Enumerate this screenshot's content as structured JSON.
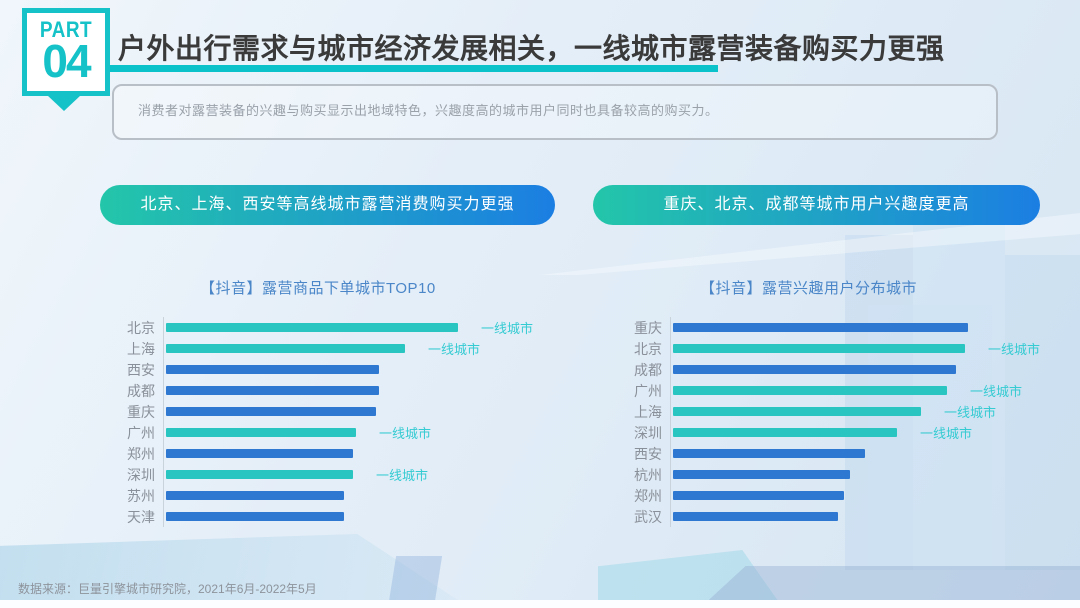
{
  "header": {
    "part_label": "PART",
    "part_number": "04",
    "title": "户外出行需求与城市经济发展相关，一线城市露营装备购买力更强",
    "subtitle": "消费者对露营装备的兴趣与购买显示出地域特色，兴趣度高的城市用户同时也具备较高的购买力。"
  },
  "pills": {
    "left": "北京、上海、西安等高线城市露营消费购买力更强",
    "right": "重庆、北京、成都等城市用户兴趣度更高"
  },
  "colors": {
    "accent_teal": "#14c2c8",
    "bar_tier1_teal": "#29c5c0",
    "bar_other_blue": "#2e78d2",
    "annotation_teal": "#35cbd2",
    "chart_title_blue": "#4a86c8",
    "pill_gradient_start": "#23c6a9",
    "pill_gradient_end": "#1b7ee2"
  },
  "chart_data": [
    {
      "type": "bar",
      "orientation": "horizontal",
      "title": "【抖音】露营商品下单城市TOP10",
      "categories": [
        "北京",
        "上海",
        "西安",
        "成都",
        "重庆",
        "广州",
        "郑州",
        "深圳",
        "苏州",
        "天津"
      ],
      "values": [
        100,
        82,
        73,
        73,
        72,
        65,
        64,
        64,
        61,
        61
      ],
      "value_note": "relative bar length, top city = 100 (no numeric axis shown)",
      "xlim": [
        0,
        100
      ],
      "grid": false,
      "tier1_annotation": "一线城市",
      "tier1_cities": [
        "北京",
        "上海",
        "广州",
        "深圳"
      ]
    },
    {
      "type": "bar",
      "orientation": "horizontal",
      "title": "【抖音】露营兴趣用户分布城市",
      "categories": [
        "重庆",
        "北京",
        "成都",
        "广州",
        "上海",
        "深圳",
        "西安",
        "杭州",
        "郑州",
        "武汉"
      ],
      "values": [
        100,
        99,
        96,
        93,
        84,
        76,
        65,
        60,
        58,
        56
      ],
      "value_note": "relative bar length, top city = 100 (no numeric axis shown)",
      "xlim": [
        0,
        100
      ],
      "grid": false,
      "tier1_annotation": "一线城市",
      "tier1_cities": [
        "北京",
        "广州",
        "上海",
        "深圳"
      ]
    }
  ],
  "footer": {
    "source": "数据来源：巨量引擎城市研究院，2021年6月-2022年5月"
  }
}
